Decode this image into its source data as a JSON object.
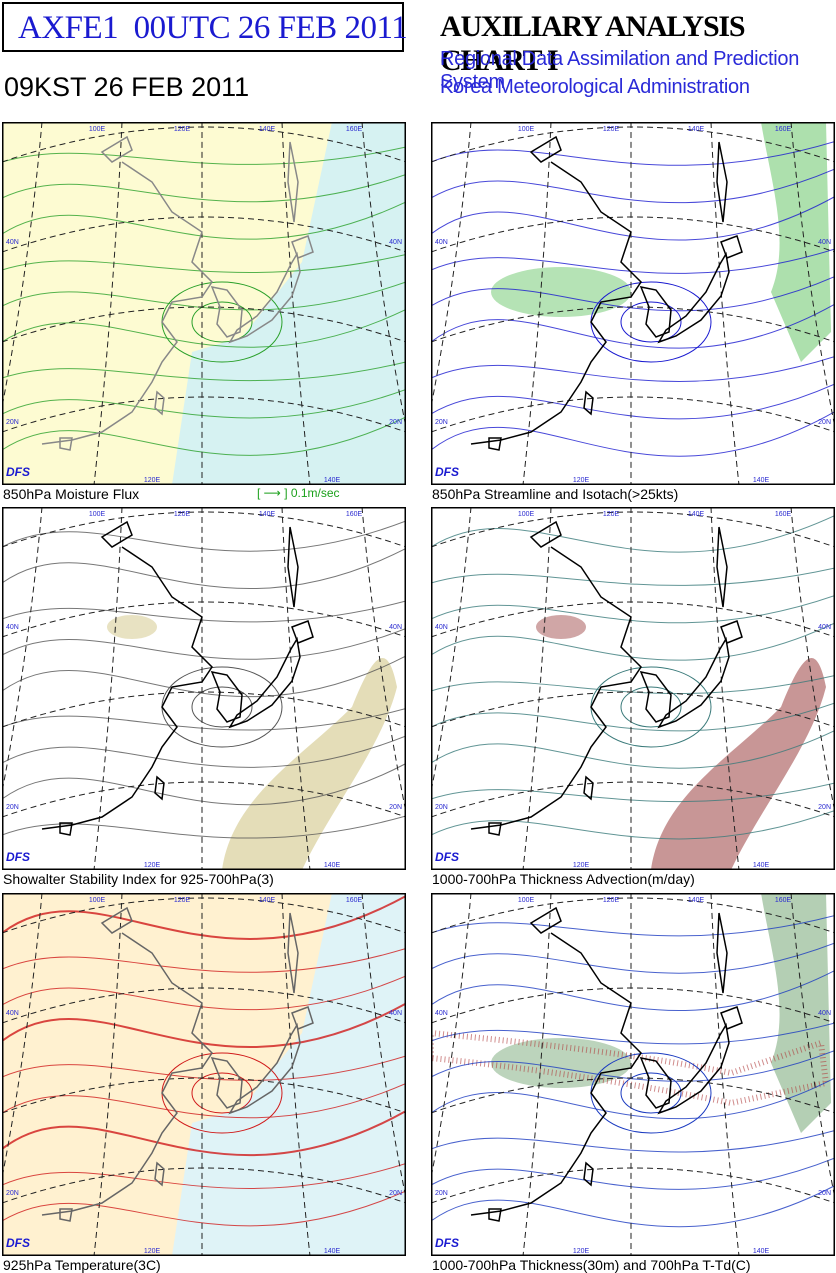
{
  "header": {
    "product": "AXFE1  00UTC 26 FEB 2011",
    "local_time": "09KST 26 FEB 2011",
    "title": "AUXILIARY ANALYSIS CHART I",
    "system": "Regional Data Assimilation and Prediction System",
    "agency": "Korea Meteorological Administration"
  },
  "map_labels": {
    "model": "DFS",
    "lon": [
      "100E",
      "120E",
      "140E",
      "160E"
    ],
    "lat": [
      "40N",
      "20N"
    ]
  },
  "panels": [
    {
      "caption": "850hPa Moisture Flux",
      "legend": "[ ⟶ ] 0.1m/sec"
    },
    {
      "caption": "850hPa Streamline and Isotach(>25kts)"
    },
    {
      "caption": "Showalter Stability Index for 925-700hPa(3)"
    },
    {
      "caption": "1000-700hPa Thickness Advection(m/day)"
    },
    {
      "caption": "925hPa Temperature(3C)"
    },
    {
      "caption": "1000-700hPa Thickness(30m) and 700hPa T-Td(C)"
    }
  ]
}
